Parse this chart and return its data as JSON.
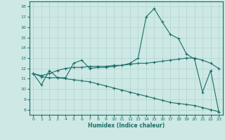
{
  "xlabel": "Humidex (Indice chaleur)",
  "ylabel": "",
  "xlim": [
    -0.5,
    23.5
  ],
  "ylim": [
    7.5,
    18.5
  ],
  "yticks": [
    8,
    9,
    10,
    11,
    12,
    13,
    14,
    15,
    16,
    17,
    18
  ],
  "xticks": [
    0,
    1,
    2,
    3,
    4,
    5,
    6,
    7,
    8,
    9,
    10,
    11,
    12,
    13,
    14,
    15,
    16,
    17,
    18,
    19,
    20,
    21,
    22,
    23
  ],
  "background_color": "#cde8e5",
  "grid_color": "#b0d4d0",
  "line_color": "#1a6e66",
  "line1_x": [
    0,
    1,
    2,
    3,
    4,
    5,
    6,
    7,
    8,
    9,
    10,
    11,
    12,
    13,
    14,
    15,
    16,
    17,
    18,
    19,
    20,
    21,
    22,
    23
  ],
  "line1_y": [
    11.5,
    10.4,
    11.8,
    11.1,
    11.1,
    12.5,
    12.8,
    12.0,
    12.1,
    12.1,
    12.2,
    12.3,
    12.5,
    13.0,
    17.0,
    17.8,
    16.5,
    15.3,
    14.9,
    13.4,
    12.9,
    9.7,
    11.8,
    7.8
  ],
  "line2_x": [
    0,
    1,
    2,
    3,
    4,
    5,
    6,
    7,
    8,
    9,
    10,
    11,
    12,
    13,
    14,
    15,
    16,
    17,
    18,
    19,
    20,
    21,
    22,
    23
  ],
  "line2_y": [
    11.5,
    11.3,
    11.5,
    11.8,
    12.0,
    12.1,
    12.1,
    12.2,
    12.2,
    12.2,
    12.3,
    12.3,
    12.4,
    12.5,
    12.5,
    12.6,
    12.7,
    12.8,
    12.9,
    13.0,
    13.0,
    12.8,
    12.5,
    12.0
  ],
  "line3_x": [
    0,
    1,
    2,
    3,
    4,
    5,
    6,
    7,
    8,
    9,
    10,
    11,
    12,
    13,
    14,
    15,
    16,
    17,
    18,
    19,
    20,
    21,
    22,
    23
  ],
  "line3_y": [
    11.5,
    11.2,
    11.1,
    11.1,
    11.0,
    10.9,
    10.8,
    10.7,
    10.5,
    10.3,
    10.1,
    9.9,
    9.7,
    9.5,
    9.3,
    9.1,
    8.9,
    8.7,
    8.6,
    8.5,
    8.4,
    8.2,
    8.0,
    7.8
  ]
}
